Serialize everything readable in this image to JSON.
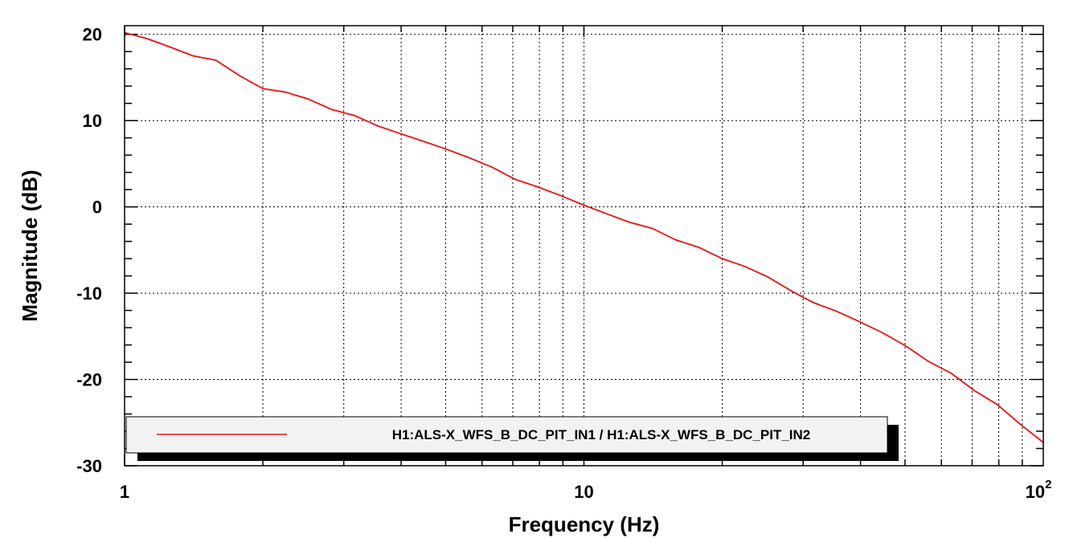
{
  "chart_data": {
    "type": "line",
    "xlabel": "Frequency (Hz)",
    "ylabel": "Magnitude (dB)",
    "x_scale": "log",
    "xlim": [
      1,
      100
    ],
    "ylim": [
      -30,
      21
    ],
    "grid": true,
    "legend_placement": "bottom-left",
    "x_ticks": [
      {
        "value": 1,
        "label": "1"
      },
      {
        "value": 10,
        "label": "10"
      },
      {
        "value": 100,
        "label": "10",
        "exponent": "2"
      }
    ],
    "y_ticks": [
      {
        "value": 20,
        "label": "20"
      },
      {
        "value": 10,
        "label": "10"
      },
      {
        "value": 0,
        "label": "0"
      },
      {
        "value": -10,
        "label": "-10"
      },
      {
        "value": -20,
        "label": "-20"
      },
      {
        "value": -30,
        "label": "-30"
      }
    ],
    "series": [
      {
        "name": "H1:ALS-X_WFS_B_DC_PIT_IN1 / H1:ALS-X_WFS_B_DC_PIT_IN2",
        "color": "#ee1111",
        "x": [
          1.0,
          1.12,
          1.26,
          1.41,
          1.58,
          1.78,
          2.0,
          2.24,
          2.51,
          2.82,
          3.16,
          3.55,
          3.98,
          4.47,
          5.01,
          5.62,
          6.31,
          7.08,
          7.94,
          8.91,
          10.0,
          11.2,
          12.6,
          14.1,
          15.8,
          17.8,
          20.0,
          22.4,
          25.1,
          28.2,
          31.6,
          35.5,
          39.8,
          44.7,
          50.1,
          56.2,
          63.1,
          70.8,
          79.4,
          89.1,
          100.0
        ],
        "y": [
          20.2,
          19.5,
          18.5,
          17.5,
          17.0,
          15.2,
          13.7,
          13.3,
          12.5,
          11.3,
          10.6,
          9.4,
          8.5,
          7.6,
          6.7,
          5.7,
          4.6,
          3.2,
          2.3,
          1.3,
          0.2,
          -0.8,
          -1.8,
          -2.5,
          -3.8,
          -4.7,
          -6.0,
          -6.9,
          -8.1,
          -9.7,
          -11.1,
          -12.1,
          -13.3,
          -14.6,
          -16.1,
          -17.9,
          -19.3,
          -21.3,
          -22.9,
          -25.2,
          -27.3
        ]
      }
    ]
  }
}
